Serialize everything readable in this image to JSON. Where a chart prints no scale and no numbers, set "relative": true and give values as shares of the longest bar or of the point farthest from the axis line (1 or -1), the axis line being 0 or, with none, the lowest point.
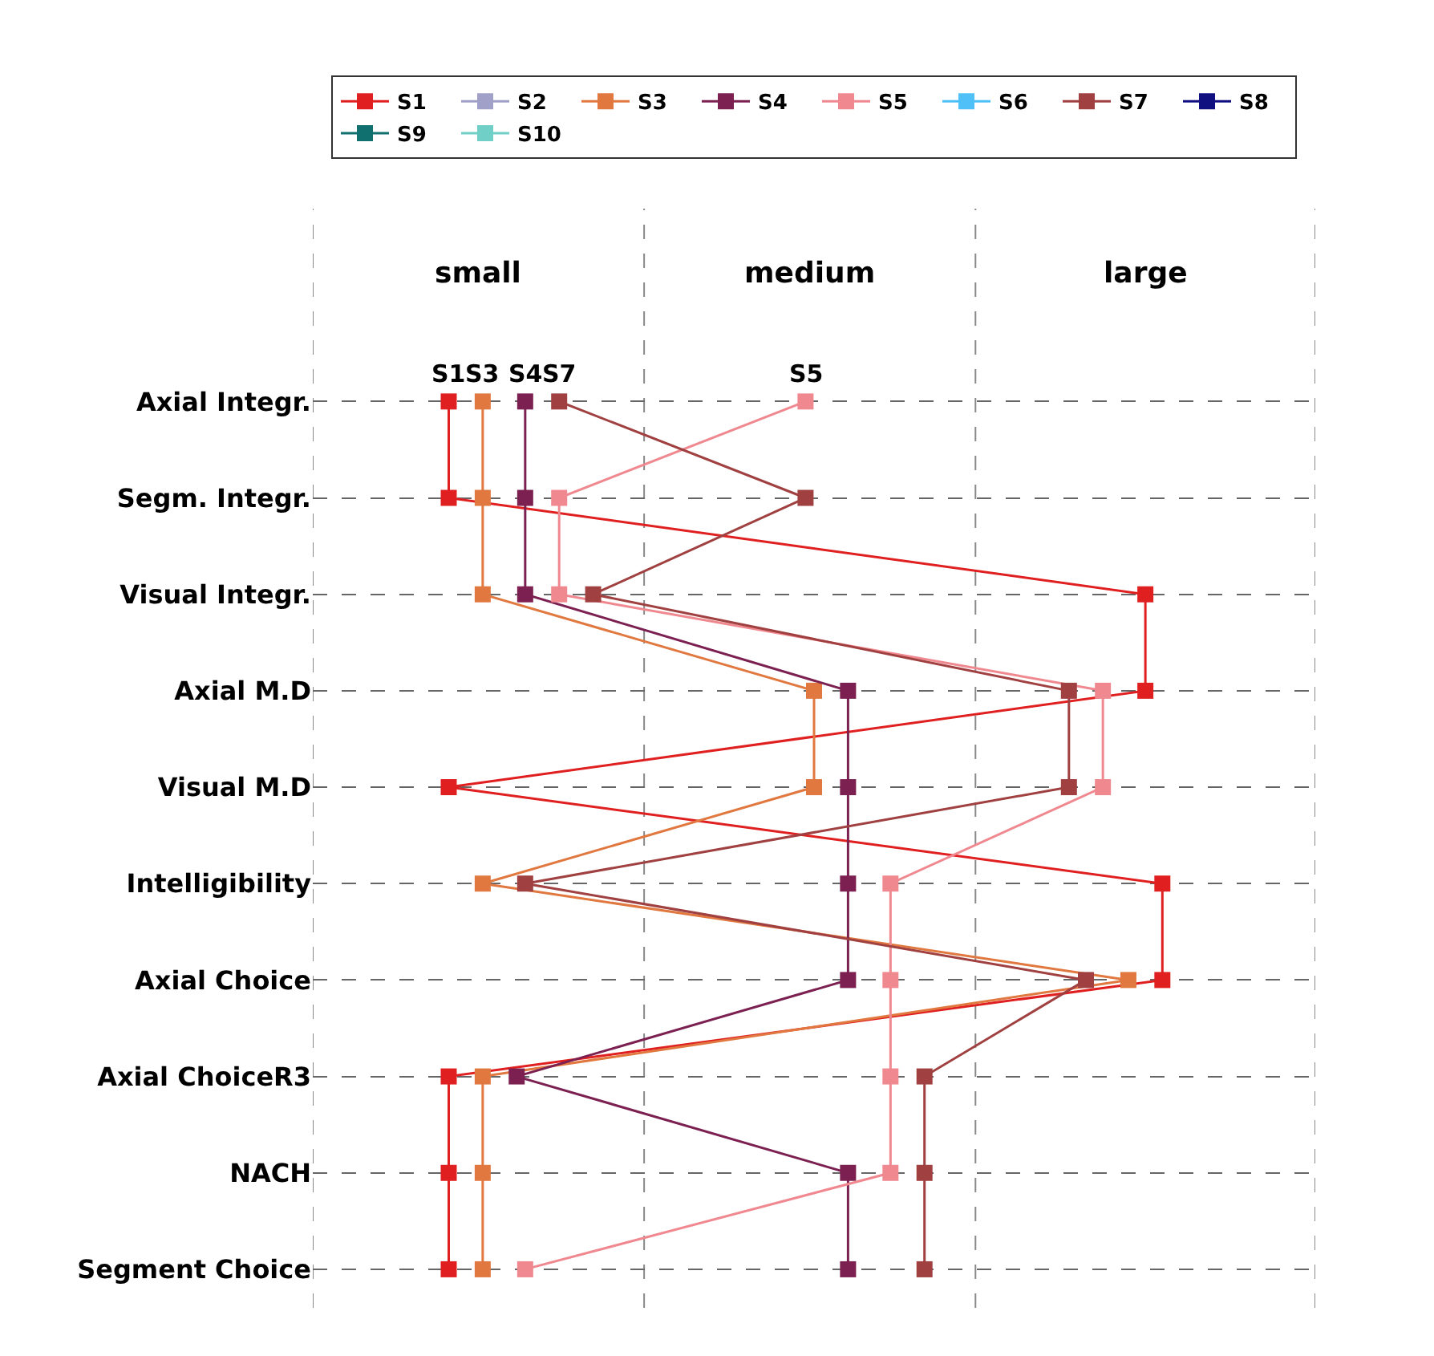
{
  "chart_data": {
    "type": "line",
    "orientation": "horizontal",
    "relative": true,
    "categories": [
      "Axial Integr.",
      "Segm. Integr.",
      "Visual Integr.",
      "Axial M.D",
      "Visual M.D",
      "Intelligibility",
      "Axial Choice",
      "Axial ChoiceR3",
      "NACH",
      "Segment Choice"
    ],
    "series": [
      {
        "name": "S1",
        "color": "#e02020",
        "values": [
          0.16,
          0.16,
          0.98,
          0.98,
          0.16,
          1,
          1,
          0.16,
          0.16,
          0.16
        ]
      },
      {
        "name": "S2",
        "color": "#a0a0c8",
        "values": [
          null,
          null,
          null,
          null,
          null,
          null,
          null,
          null,
          null,
          null
        ]
      },
      {
        "name": "S3",
        "color": "#e07840",
        "values": [
          0.2,
          0.2,
          0.2,
          0.59,
          0.59,
          0.2,
          0.96,
          0.2,
          0.2,
          0.2
        ]
      },
      {
        "name": "S4",
        "color": "#7b2050",
        "values": [
          0.25,
          0.25,
          0.25,
          0.63,
          0.63,
          0.63,
          0.63,
          0.24,
          0.63,
          0.63
        ]
      },
      {
        "name": "S5",
        "color": "#f08890",
        "values": [
          0.58,
          0.29,
          0.29,
          0.93,
          0.93,
          0.68,
          0.68,
          0.68,
          0.68,
          0.25
        ]
      },
      {
        "name": "S6",
        "color": "#50c0f8",
        "values": [
          null,
          null,
          null,
          null,
          null,
          null,
          null,
          null,
          null,
          null
        ]
      },
      {
        "name": "S7",
        "color": "#a04040",
        "values": [
          0.29,
          0.58,
          0.33,
          0.89,
          0.89,
          0.25,
          0.91,
          0.72,
          0.72,
          0.72
        ]
      },
      {
        "name": "S8",
        "color": "#101080",
        "values": [
          null,
          null,
          null,
          null,
          null,
          null,
          null,
          null,
          null,
          null
        ]
      },
      {
        "name": "S9",
        "color": "#107070",
        "values": [
          null,
          null,
          null,
          null,
          null,
          null,
          null,
          null,
          null,
          null
        ]
      },
      {
        "name": "S10",
        "color": "#70d0c8",
        "values": [
          null,
          null,
          null,
          null,
          null,
          null,
          null,
          null,
          null,
          null
        ]
      }
    ],
    "annotations": [
      "small",
      "medium",
      "large",
      {
        "text": "S1",
        "x": 0.16,
        "y": "Axial Integr."
      },
      {
        "text": "S3",
        "x": 0.2,
        "y": "Axial Integr."
      },
      {
        "text": "S4",
        "x": 0.25,
        "y": "Axial Integr."
      },
      {
        "text": "S7",
        "x": 0.29,
        "y": "Axial Integr."
      },
      {
        "text": "S5",
        "x": 0.58,
        "y": "Axial Integr."
      }
    ],
    "ref_lines": [
      {
        "axis": "x",
        "value": 0,
        "label": null
      },
      {
        "axis": "x",
        "value": 0.39,
        "label": null
      },
      {
        "axis": "x",
        "value": 0.78,
        "label": null
      },
      {
        "axis": "x",
        "value": 1.18,
        "label": null
      }
    ],
    "grid": true,
    "legend": "top",
    "marker": "square",
    "line_style": "solid"
  }
}
